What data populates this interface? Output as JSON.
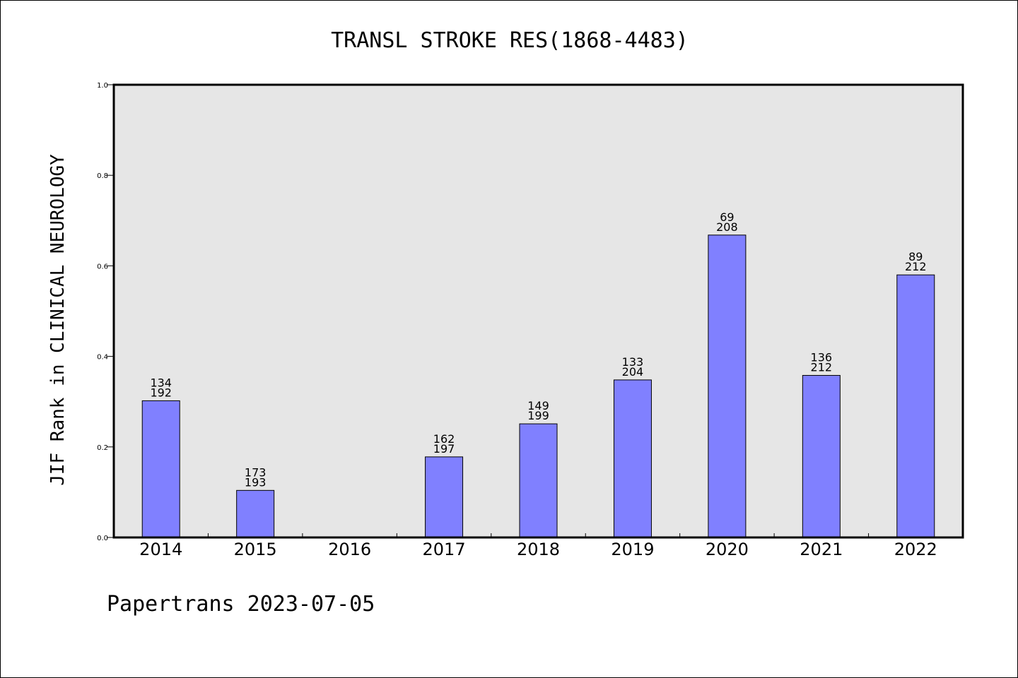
{
  "chart_data": {
    "type": "bar",
    "title": "TRANSL STROKE RES(1868-4483)",
    "ylabel": "JIF Rank in CLINICAL NEUROLOGY",
    "xlabel": "",
    "ylim": [
      0,
      1.0
    ],
    "yticks": [
      "0.0",
      "0.2",
      "0.4",
      "0.6",
      "0.8",
      "1.0"
    ],
    "categories": [
      "2014",
      "2015",
      "2016",
      "2017",
      "2018",
      "2019",
      "2020",
      "2021",
      "2022"
    ],
    "values": [
      0.302,
      0.104,
      null,
      0.178,
      0.251,
      0.348,
      0.668,
      0.358,
      0.58
    ],
    "labels": [
      [
        "134",
        "192"
      ],
      [
        "173",
        "193"
      ],
      null,
      [
        "162",
        "197"
      ],
      [
        "149",
        "199"
      ],
      [
        "133",
        "204"
      ],
      [
        "69",
        "208"
      ],
      [
        "136",
        "212"
      ],
      [
        "89",
        "212"
      ]
    ],
    "bar_color": "#8080ff",
    "plot_background": "#e6e6e6",
    "grid": false,
    "legend": "none"
  },
  "footer": {
    "text": "Papertrans 2023-07-05"
  }
}
